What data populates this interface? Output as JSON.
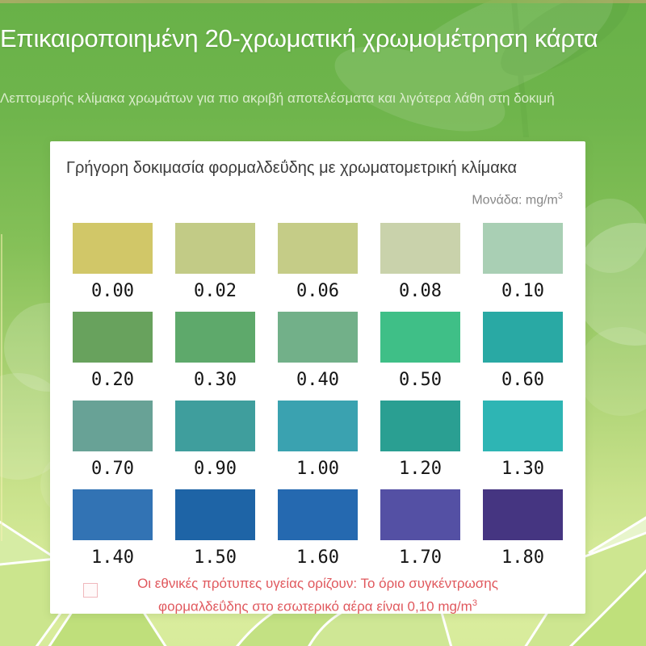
{
  "header": {
    "title": "Επικαιροποιημένη 20-χρωματική χρωμομέτρηση κάρτα",
    "subtitle": "Λεπτομερής κλίμακα χρωμάτων για πιο ακριβή αποτελέσματα και λιγότερα λάθη στη δοκιμή"
  },
  "card": {
    "title": "Γρήγορη δοκιμασία φορμαλδεΰδης με χρωματομετρική κλίμακα",
    "unit": {
      "label": "Μονάδα: mg/m",
      "sup": "3"
    },
    "note": {
      "line1": "Οι εθνικές πρότυπες υγείας ορίζουν: Το όριο συγκέντρωσης",
      "line2": "φορμαλδεΰδης στο εσωτερικό αέρα είναι 0,10 mg/m",
      "sup": "3"
    }
  },
  "colors": {
    "note_red": "#e0585d",
    "unit_gray": "#878787",
    "background_green_top": "#68b148",
    "background_green_bottom": "#dcee9f",
    "top_strip_olive": "#b3a660",
    "card_white": "#ffffff"
  },
  "chart_data": {
    "type": "table",
    "title": "Γρήγορη δοκιμασία φορμαλδεΰδης με χρωματομετρική κλίμακα",
    "unit": "mg/m³",
    "rows": [
      [
        {
          "value": "0.00",
          "color": "#d1c768"
        },
        {
          "value": "0.02",
          "color": "#c2cb86"
        },
        {
          "value": "0.06",
          "color": "#c5cc87"
        },
        {
          "value": "0.08",
          "color": "#c9d2ab"
        },
        {
          "value": "0.10",
          "color": "#a9cfb4"
        }
      ],
      [
        {
          "value": "0.20",
          "color": "#68a25d"
        },
        {
          "value": "0.30",
          "color": "#5ea96b"
        },
        {
          "value": "0.40",
          "color": "#72b089"
        },
        {
          "value": "0.50",
          "color": "#3fbf87"
        },
        {
          "value": "0.60",
          "color": "#29a9a4"
        }
      ],
      [
        {
          "value": "0.70",
          "color": "#68a296"
        },
        {
          "value": "0.90",
          "color": "#3f9e9d"
        },
        {
          "value": "1.00",
          "color": "#3aa2b0"
        },
        {
          "value": "1.20",
          "color": "#2a9f92"
        },
        {
          "value": "1.30",
          "color": "#2eb5b4"
        }
      ],
      [
        {
          "value": "1.40",
          "color": "#3273b4"
        },
        {
          "value": "1.50",
          "color": "#1e64a6"
        },
        {
          "value": "1.60",
          "color": "#2569b0"
        },
        {
          "value": "1.70",
          "color": "#5450a4"
        },
        {
          "value": "1.80",
          "color": "#453581"
        }
      ]
    ]
  }
}
